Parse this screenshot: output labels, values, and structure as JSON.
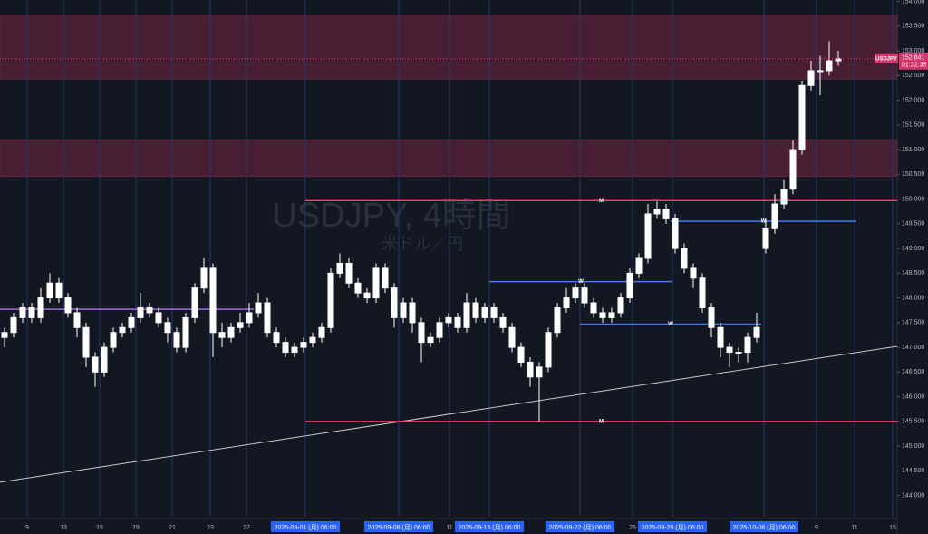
{
  "chart_data": {
    "type": "candlestick",
    "watermark": "USDJPY, 4時間",
    "watermark_sub": "米ドル／円",
    "symbol": "USDJPY",
    "last_price": 152.841,
    "countdown": "01:32:35",
    "x": [
      0,
      1,
      2,
      3,
      4,
      5,
      6,
      7,
      8,
      9,
      10,
      11,
      12,
      13,
      14,
      15,
      16,
      17,
      18,
      19,
      20,
      21,
      22,
      23,
      24,
      25,
      26,
      27,
      28,
      29,
      30,
      31,
      32,
      33,
      34,
      35,
      36,
      37,
      38,
      39,
      40,
      41,
      42,
      43,
      44,
      45,
      46,
      47,
      48,
      49,
      50,
      51,
      52,
      53,
      54,
      55,
      56,
      57,
      58,
      59,
      60,
      61,
      62,
      63,
      64,
      65,
      66,
      67,
      68,
      69,
      70,
      71,
      72,
      73,
      74,
      75,
      76,
      77,
      78,
      79,
      80,
      81,
      82,
      83,
      84,
      85,
      86,
      87,
      88,
      89,
      90,
      91,
      92
    ],
    "open": [
      147.2,
      147.3,
      147.6,
      147.8,
      147.6,
      148.0,
      148.3,
      148.0,
      147.7,
      147.4,
      146.8,
      146.5,
      147.0,
      147.3,
      147.4,
      147.6,
      147.8,
      147.7,
      147.5,
      147.3,
      147.0,
      147.6,
      148.2,
      148.6,
      147.3,
      147.2,
      147.4,
      147.5,
      147.7,
      147.9,
      147.3,
      147.1,
      146.9,
      147.0,
      147.1,
      147.2,
      147.4,
      148.5,
      148.7,
      148.3,
      148.1,
      148.0,
      148.6,
      148.2,
      147.6,
      147.9,
      147.5,
      147.1,
      147.2,
      147.5,
      147.6,
      147.4,
      147.9,
      147.6,
      147.8,
      147.6,
      147.4,
      147.0,
      146.7,
      146.4,
      146.6,
      147.3,
      147.8,
      148.0,
      148.2,
      147.9,
      147.7,
      147.6,
      147.7,
      148.0,
      148.5,
      148.8,
      149.7,
      149.8,
      149.6,
      149.0,
      148.6,
      148.4,
      147.8,
      147.4,
      147.0,
      146.9,
      146.9,
      147.2,
      149.0,
      149.4,
      149.9,
      150.2,
      151.0,
      152.3,
      152.6,
      152.6,
      152.8
    ],
    "high": [
      147.4,
      147.7,
      147.9,
      147.9,
      148.2,
      148.5,
      148.4,
      148.1,
      147.8,
      147.5,
      146.9,
      147.1,
      147.4,
      147.5,
      147.7,
      148.1,
      147.9,
      147.8,
      147.6,
      147.4,
      147.7,
      148.3,
      148.8,
      148.7,
      147.5,
      147.5,
      147.7,
      147.9,
      148.1,
      148.0,
      147.4,
      147.2,
      147.1,
      147.2,
      147.3,
      147.5,
      148.6,
      148.9,
      148.8,
      148.4,
      148.2,
      148.7,
      148.7,
      148.3,
      148.0,
      148.0,
      147.6,
      147.3,
      147.6,
      147.7,
      147.7,
      148.1,
      148.0,
      147.9,
      147.9,
      147.7,
      147.5,
      147.1,
      146.8,
      146.7,
      147.4,
      147.9,
      148.2,
      148.3,
      148.3,
      148.0,
      147.8,
      147.8,
      148.1,
      148.6,
      148.9,
      149.9,
      149.95,
      149.9,
      149.7,
      149.1,
      148.7,
      148.5,
      147.9,
      147.5,
      147.1,
      147.0,
      147.3,
      147.7,
      149.6,
      150.1,
      150.4,
      151.2,
      152.4,
      152.8,
      152.9,
      153.2,
      153.0
    ],
    "low": [
      147.0,
      147.2,
      147.5,
      147.5,
      147.5,
      147.9,
      147.9,
      147.6,
      147.2,
      146.6,
      146.2,
      146.4,
      146.9,
      147.2,
      147.3,
      147.5,
      147.6,
      147.4,
      147.1,
      146.9,
      146.9,
      147.5,
      148.1,
      146.8,
      147.0,
      147.1,
      147.3,
      147.4,
      147.6,
      147.2,
      147.0,
      146.8,
      146.8,
      146.9,
      147.0,
      147.1,
      147.3,
      148.4,
      148.2,
      148.0,
      147.9,
      147.9,
      148.1,
      147.4,
      147.5,
      147.3,
      146.7,
      147.0,
      147.1,
      147.4,
      147.3,
      147.3,
      147.5,
      147.5,
      147.5,
      147.3,
      146.9,
      146.6,
      146.2,
      145.5,
      146.5,
      147.2,
      147.7,
      147.9,
      147.8,
      147.6,
      147.5,
      147.5,
      147.6,
      147.9,
      148.4,
      148.7,
      149.6,
      149.5,
      148.9,
      148.5,
      148.2,
      147.7,
      147.2,
      146.8,
      146.6,
      146.7,
      146.7,
      147.1,
      148.9,
      149.3,
      149.8,
      150.1,
      150.9,
      152.2,
      152.1,
      152.5,
      152.7
    ],
    "close": [
      147.3,
      147.6,
      147.8,
      147.6,
      148.0,
      148.3,
      148.0,
      147.7,
      147.4,
      146.8,
      146.5,
      147.0,
      147.3,
      147.4,
      147.6,
      147.8,
      147.7,
      147.5,
      147.3,
      147.0,
      147.6,
      148.2,
      148.6,
      147.3,
      147.2,
      147.4,
      147.5,
      147.7,
      147.9,
      147.3,
      147.1,
      146.9,
      147.0,
      147.1,
      147.2,
      147.4,
      148.5,
      148.7,
      148.3,
      148.1,
      148.0,
      148.6,
      148.2,
      147.6,
      147.9,
      147.5,
      147.1,
      147.2,
      147.5,
      147.6,
      147.4,
      147.9,
      147.6,
      147.8,
      147.6,
      147.4,
      147.0,
      146.7,
      146.4,
      146.6,
      147.3,
      147.8,
      148.0,
      148.2,
      147.9,
      147.7,
      147.6,
      147.7,
      148.0,
      148.5,
      148.8,
      149.7,
      149.8,
      149.6,
      149.0,
      148.6,
      148.4,
      147.8,
      147.4,
      147.0,
      146.9,
      146.9,
      147.2,
      147.4,
      149.4,
      149.9,
      150.2,
      151.0,
      152.3,
      152.6,
      152.6,
      152.8,
      152.841
    ],
    "candle_color": "#ffffff",
    "xlim": [
      -0.5,
      98.5
    ],
    "ylim": [
      143.57,
      154.03
    ],
    "xticks": [
      {
        "value": 2.5,
        "label": "9"
      },
      {
        "value": 6.5,
        "label": "13"
      },
      {
        "value": 10.5,
        "label": "15"
      },
      {
        "value": 14.5,
        "label": "19"
      },
      {
        "value": 18.5,
        "label": "21"
      },
      {
        "value": 22.7,
        "label": "23"
      },
      {
        "value": 26.7,
        "label": "27"
      },
      {
        "value": 33.2,
        "label": "2025-09-01 (月)   06:00"
      },
      {
        "value": 43.5,
        "label": "2025-09-08 (月)   06:00"
      },
      {
        "value": 49.1,
        "label": "11"
      },
      {
        "value": 53.5,
        "label": "2025-09-15 (月)   06:00"
      },
      {
        "value": 63.5,
        "label": "2025-09-22 (月)   06:00"
      },
      {
        "value": 69.3,
        "label": "25"
      },
      {
        "value": 73.7,
        "label": "2025-09-29 (月)   06:00"
      },
      {
        "value": 83.8,
        "label": "2025-10-06 (月)   06:00"
      },
      {
        "value": 89.6,
        "label": "9"
      },
      {
        "value": 93.8,
        "label": "11"
      },
      {
        "value": 98,
        "label": "15"
      }
    ],
    "yticks": [
      {
        "value": 144,
        "label": "144.000"
      },
      {
        "value": 144.5,
        "label": "144.500"
      },
      {
        "value": 145,
        "label": "145.000"
      },
      {
        "value": 145.5,
        "label": "145.500"
      },
      {
        "value": 146,
        "label": "146.000"
      },
      {
        "value": 146.5,
        "label": "146.500"
      },
      {
        "value": 147,
        "label": "147.000"
      },
      {
        "value": 147.5,
        "label": "147.500"
      },
      {
        "value": 148,
        "label": "148.000"
      },
      {
        "value": 148.5,
        "label": "148.500"
      },
      {
        "value": 149,
        "label": "149.000"
      },
      {
        "value": 149.5,
        "label": "149.500"
      },
      {
        "value": 150,
        "label": "150.000"
      },
      {
        "value": 150.5,
        "label": "150.500"
      },
      {
        "value": 151,
        "label": "151.000"
      },
      {
        "value": 151.5,
        "label": "151.500"
      },
      {
        "value": 152,
        "label": "152.000"
      },
      {
        "value": 152.5,
        "label": "152.500"
      },
      {
        "value": 153,
        "label": "153.000"
      },
      {
        "value": 153.5,
        "label": "153.500"
      },
      {
        "value": 154,
        "label": "154.000"
      }
    ],
    "zones": [
      {
        "low": 152.43,
        "high": 153.72,
        "color": "#5a2238"
      },
      {
        "low": 150.46,
        "high": 151.2,
        "color": "#5a2238"
      }
    ],
    "levels": [
      {
        "price": 149.97,
        "from": 33.2,
        "to": 98.5,
        "color": "#f23a6a",
        "label": "M"
      },
      {
        "price": 145.5,
        "from": 33.2,
        "to": 98.5,
        "color": "#f23a6a",
        "label": "M"
      },
      {
        "price": 149.55,
        "from": 73.5,
        "to": 94,
        "color": "#3d7bf5",
        "label": "W"
      },
      {
        "price": 148.33,
        "from": 53.5,
        "to": 73.7,
        "color": "#3d7bf5",
        "label": "W"
      },
      {
        "price": 147.47,
        "from": 63.5,
        "to": 83.5,
        "color": "#3d7bf5",
        "label": "W"
      },
      {
        "price": 147.77,
        "from": -0.5,
        "to": 27.5,
        "color": "#9a6fd8"
      }
    ],
    "trendline": {
      "x": [
        -0.5,
        98.5
      ],
      "y": [
        144.27,
        147.02
      ],
      "color": "#c8c8c8"
    }
  }
}
